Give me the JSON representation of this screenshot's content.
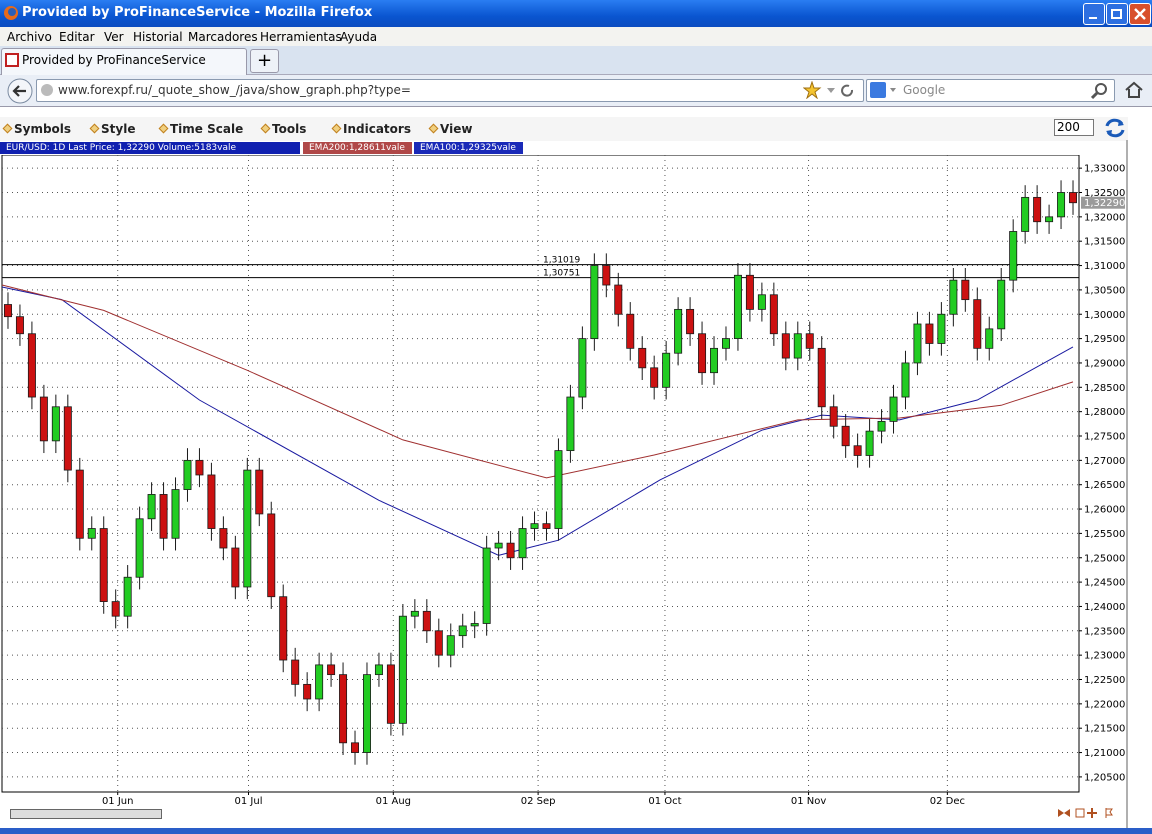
{
  "window": {
    "title": "Provided by ProFinanceService - Mozilla Firefox"
  },
  "menu": [
    "Archivo",
    "Editar",
    "Ver",
    "Historial",
    "Marcadores",
    "Herramientas",
    "Ayuda"
  ],
  "tab": {
    "title": "Provided by ProFinanceService"
  },
  "address": {
    "url": "www.forexpf.ru/_quote_show_/java/show_graph.php?type=",
    "search": "Google"
  },
  "toolbar": {
    "items": [
      "Symbols",
      "Style",
      "Time Scale",
      "Tools",
      "Indicators",
      "View"
    ],
    "count": "200"
  },
  "info": {
    "quote": "EUR/USD: 1D Last Price: 1,32290 Volume:5183vale",
    "ema200": "EMA200:1,28611vale",
    "ema100": "EMA100:1,29325vale"
  },
  "chart_data": {
    "type": "candlestick",
    "up_color": "#22cc22",
    "down_color": "#cc1111",
    "outline_color": "#1a1a1a",
    "open": [
      1.302,
      1.2995,
      1.296,
      1.283,
      1.274,
      1.281,
      1.268,
      1.254,
      1.256,
      1.241,
      1.238,
      1.246,
      1.258,
      1.263,
      1.254,
      1.264,
      1.27,
      1.267,
      1.256,
      1.252,
      1.244,
      1.268,
      1.259,
      1.242,
      1.229,
      1.224,
      1.221,
      1.228,
      1.226,
      1.212,
      1.21,
      1.226,
      1.228,
      1.216,
      1.238,
      1.239,
      1.235,
      1.23,
      1.234,
      1.236,
      1.2365,
      1.252,
      1.253,
      1.25,
      1.256,
      1.257,
      1.256,
      1.272,
      1.283,
      1.295,
      1.31,
      1.306,
      1.3,
      1.293,
      1.289,
      1.285,
      1.292,
      1.301,
      1.296,
      1.288,
      1.293,
      1.295,
      1.308,
      1.301,
      1.304,
      1.296,
      1.291,
      1.296,
      1.293,
      1.281,
      1.277,
      1.273,
      1.271,
      1.276,
      1.278,
      1.283,
      1.29,
      1.298,
      1.294,
      1.3,
      1.307,
      1.303,
      1.293,
      1.297,
      1.307,
      1.317,
      1.324,
      1.319,
      1.32,
      1.325
    ],
    "high": [
      1.3045,
      1.302,
      1.2985,
      1.2855,
      1.2835,
      1.2835,
      1.2705,
      1.2585,
      1.2585,
      1.2435,
      1.2485,
      1.2605,
      1.2655,
      1.2655,
      1.2665,
      1.2725,
      1.2725,
      1.2695,
      1.2585,
      1.2545,
      1.2705,
      1.2705,
      1.2615,
      1.2445,
      1.2315,
      1.2265,
      1.2305,
      1.2305,
      1.2285,
      1.2145,
      1.2285,
      1.2305,
      1.2305,
      1.2405,
      1.2415,
      1.2415,
      1.2375,
      1.2365,
      1.2385,
      1.239,
      1.2545,
      1.2555,
      1.2555,
      1.2585,
      1.2595,
      1.2595,
      1.2745,
      1.2855,
      1.2975,
      1.3125,
      1.3125,
      1.3085,
      1.3025,
      1.2955,
      1.2915,
      1.2945,
      1.3035,
      1.3035,
      1.2985,
      1.2955,
      1.2975,
      1.3105,
      1.3105,
      1.3065,
      1.3065,
      1.2985,
      1.2985,
      1.2985,
      1.2955,
      1.2835,
      1.2795,
      1.2755,
      1.2785,
      1.2805,
      1.2855,
      1.2925,
      1.3005,
      1.3005,
      1.3025,
      1.3095,
      1.3095,
      1.3055,
      1.2995,
      1.3095,
      1.3195,
      1.3265,
      1.3265,
      1.3225,
      1.3275,
      1.3275
    ],
    "low": [
      1.297,
      1.2935,
      1.2805,
      1.2715,
      1.2715,
      1.2655,
      1.2515,
      1.2515,
      1.2385,
      1.2355,
      1.2355,
      1.2435,
      1.2555,
      1.2515,
      1.2515,
      1.2615,
      1.2645,
      1.2535,
      1.2495,
      1.2415,
      1.2415,
      1.2565,
      1.2395,
      1.2265,
      1.2215,
      1.2185,
      1.2185,
      1.2235,
      1.2095,
      1.2075,
      1.2075,
      1.2235,
      1.2135,
      1.2135,
      1.2355,
      1.2325,
      1.2275,
      1.2275,
      1.2315,
      1.2335,
      1.234,
      1.2495,
      1.2475,
      1.2475,
      1.2535,
      1.2535,
      1.2535,
      1.2695,
      1.2805,
      1.2925,
      1.3035,
      1.2975,
      1.2905,
      1.2865,
      1.2825,
      1.2825,
      1.2895,
      1.2935,
      1.2855,
      1.2855,
      1.2905,
      1.2925,
      1.2985,
      1.2985,
      1.2935,
      1.2885,
      1.2885,
      1.2905,
      1.2785,
      1.2745,
      1.2705,
      1.2685,
      1.2685,
      1.2735,
      1.2755,
      1.2805,
      1.2875,
      1.2915,
      1.2915,
      1.2975,
      1.3005,
      1.2905,
      1.2905,
      1.2945,
      1.3045,
      1.3145,
      1.3165,
      1.3165,
      1.3175,
      1.3204
    ],
    "close": [
      1.2995,
      1.296,
      1.283,
      1.274,
      1.281,
      1.268,
      1.254,
      1.256,
      1.241,
      1.238,
      1.246,
      1.258,
      1.263,
      1.254,
      1.264,
      1.27,
      1.267,
      1.256,
      1.252,
      1.244,
      1.268,
      1.259,
      1.242,
      1.229,
      1.224,
      1.221,
      1.228,
      1.226,
      1.212,
      1.21,
      1.226,
      1.228,
      1.216,
      1.238,
      1.239,
      1.235,
      1.23,
      1.234,
      1.236,
      1.2365,
      1.252,
      1.253,
      1.25,
      1.256,
      1.257,
      1.256,
      1.272,
      1.283,
      1.295,
      1.31,
      1.306,
      1.3,
      1.293,
      1.289,
      1.285,
      1.292,
      1.301,
      1.296,
      1.288,
      1.293,
      1.295,
      1.308,
      1.301,
      1.304,
      1.296,
      1.291,
      1.296,
      1.293,
      1.281,
      1.277,
      1.273,
      1.271,
      1.276,
      1.278,
      1.283,
      1.29,
      1.298,
      1.294,
      1.3,
      1.307,
      1.303,
      1.293,
      1.297,
      1.307,
      1.317,
      1.324,
      1.319,
      1.32,
      1.325,
      1.3229
    ],
    "series": [
      {
        "name": "EMA100",
        "color": "#1a1aa0",
        "x": [
          -0.5,
          4.5,
          16,
          31,
          41,
          46,
          54.5,
          63,
          68,
          74.5,
          81,
          89
        ],
        "values": [
          1.3056,
          1.303,
          1.2824,
          1.2618,
          1.2505,
          1.2536,
          1.266,
          1.2762,
          1.2793,
          1.2783,
          1.2824,
          1.2933
        ]
      },
      {
        "name": "EMA200",
        "color": "#a03030",
        "x": [
          -0.5,
          8,
          20,
          33,
          45,
          54,
          66,
          74.5,
          83,
          89
        ],
        "values": [
          1.306,
          1.3008,
          1.2885,
          1.2742,
          1.2664,
          1.2711,
          1.2783,
          1.2787,
          1.2813,
          1.2861
        ]
      }
    ],
    "levels": [
      {
        "value": 1.31019,
        "label": "1,31019"
      },
      {
        "value": 1.30751,
        "label": "1,30751"
      }
    ],
    "level_color": "#000000",
    "last_price": {
      "value": 1.3229,
      "label": "1,32290"
    },
    "xlim": [
      -0.5,
      89.5
    ],
    "xticks": [
      {
        "value": 9.17,
        "label": "01 Jun"
      },
      {
        "value": 20.1,
        "label": "01 Jul"
      },
      {
        "value": 32.2,
        "label": "01 Aug"
      },
      {
        "value": 44.3,
        "label": "02 Sep"
      },
      {
        "value": 54.9,
        "label": "01 Oct"
      },
      {
        "value": 66.9,
        "label": "01 Nov"
      },
      {
        "value": 78.5,
        "label": "02 Dec"
      }
    ],
    "ylim": [
      1.2019,
      1.3327
    ],
    "yticks": [
      {
        "value": 1.33,
        "label": "1,33000"
      },
      {
        "value": 1.325,
        "label": "1,32500"
      },
      {
        "value": 1.32,
        "label": "1,32000"
      },
      {
        "value": 1.315,
        "label": "1,31500"
      },
      {
        "value": 1.31,
        "label": "1,31000"
      },
      {
        "value": 1.305,
        "label": "1,30500"
      },
      {
        "value": 1.3,
        "label": "1,30000"
      },
      {
        "value": 1.295,
        "label": "1,29500"
      },
      {
        "value": 1.29,
        "label": "1,29000"
      },
      {
        "value": 1.285,
        "label": "1,28500"
      },
      {
        "value": 1.28,
        "label": "1,28000"
      },
      {
        "value": 1.275,
        "label": "1,27500"
      },
      {
        "value": 1.27,
        "label": "1,27000"
      },
      {
        "value": 1.265,
        "label": "1,26500"
      },
      {
        "value": 1.26,
        "label": "1,26000"
      },
      {
        "value": 1.255,
        "label": "1,25500"
      },
      {
        "value": 1.25,
        "label": "1,25000"
      },
      {
        "value": 1.245,
        "label": "1,24500"
      },
      {
        "value": 1.24,
        "label": "1,24000"
      },
      {
        "value": 1.235,
        "label": "1,23500"
      },
      {
        "value": 1.23,
        "label": "1,23000"
      },
      {
        "value": 1.225,
        "label": "1,22500"
      },
      {
        "value": 1.22,
        "label": "1,22000"
      },
      {
        "value": 1.215,
        "label": "1,21500"
      },
      {
        "value": 1.21,
        "label": "1,21000"
      },
      {
        "value": 1.205,
        "label": "1,20500"
      }
    ],
    "grid": true
  }
}
